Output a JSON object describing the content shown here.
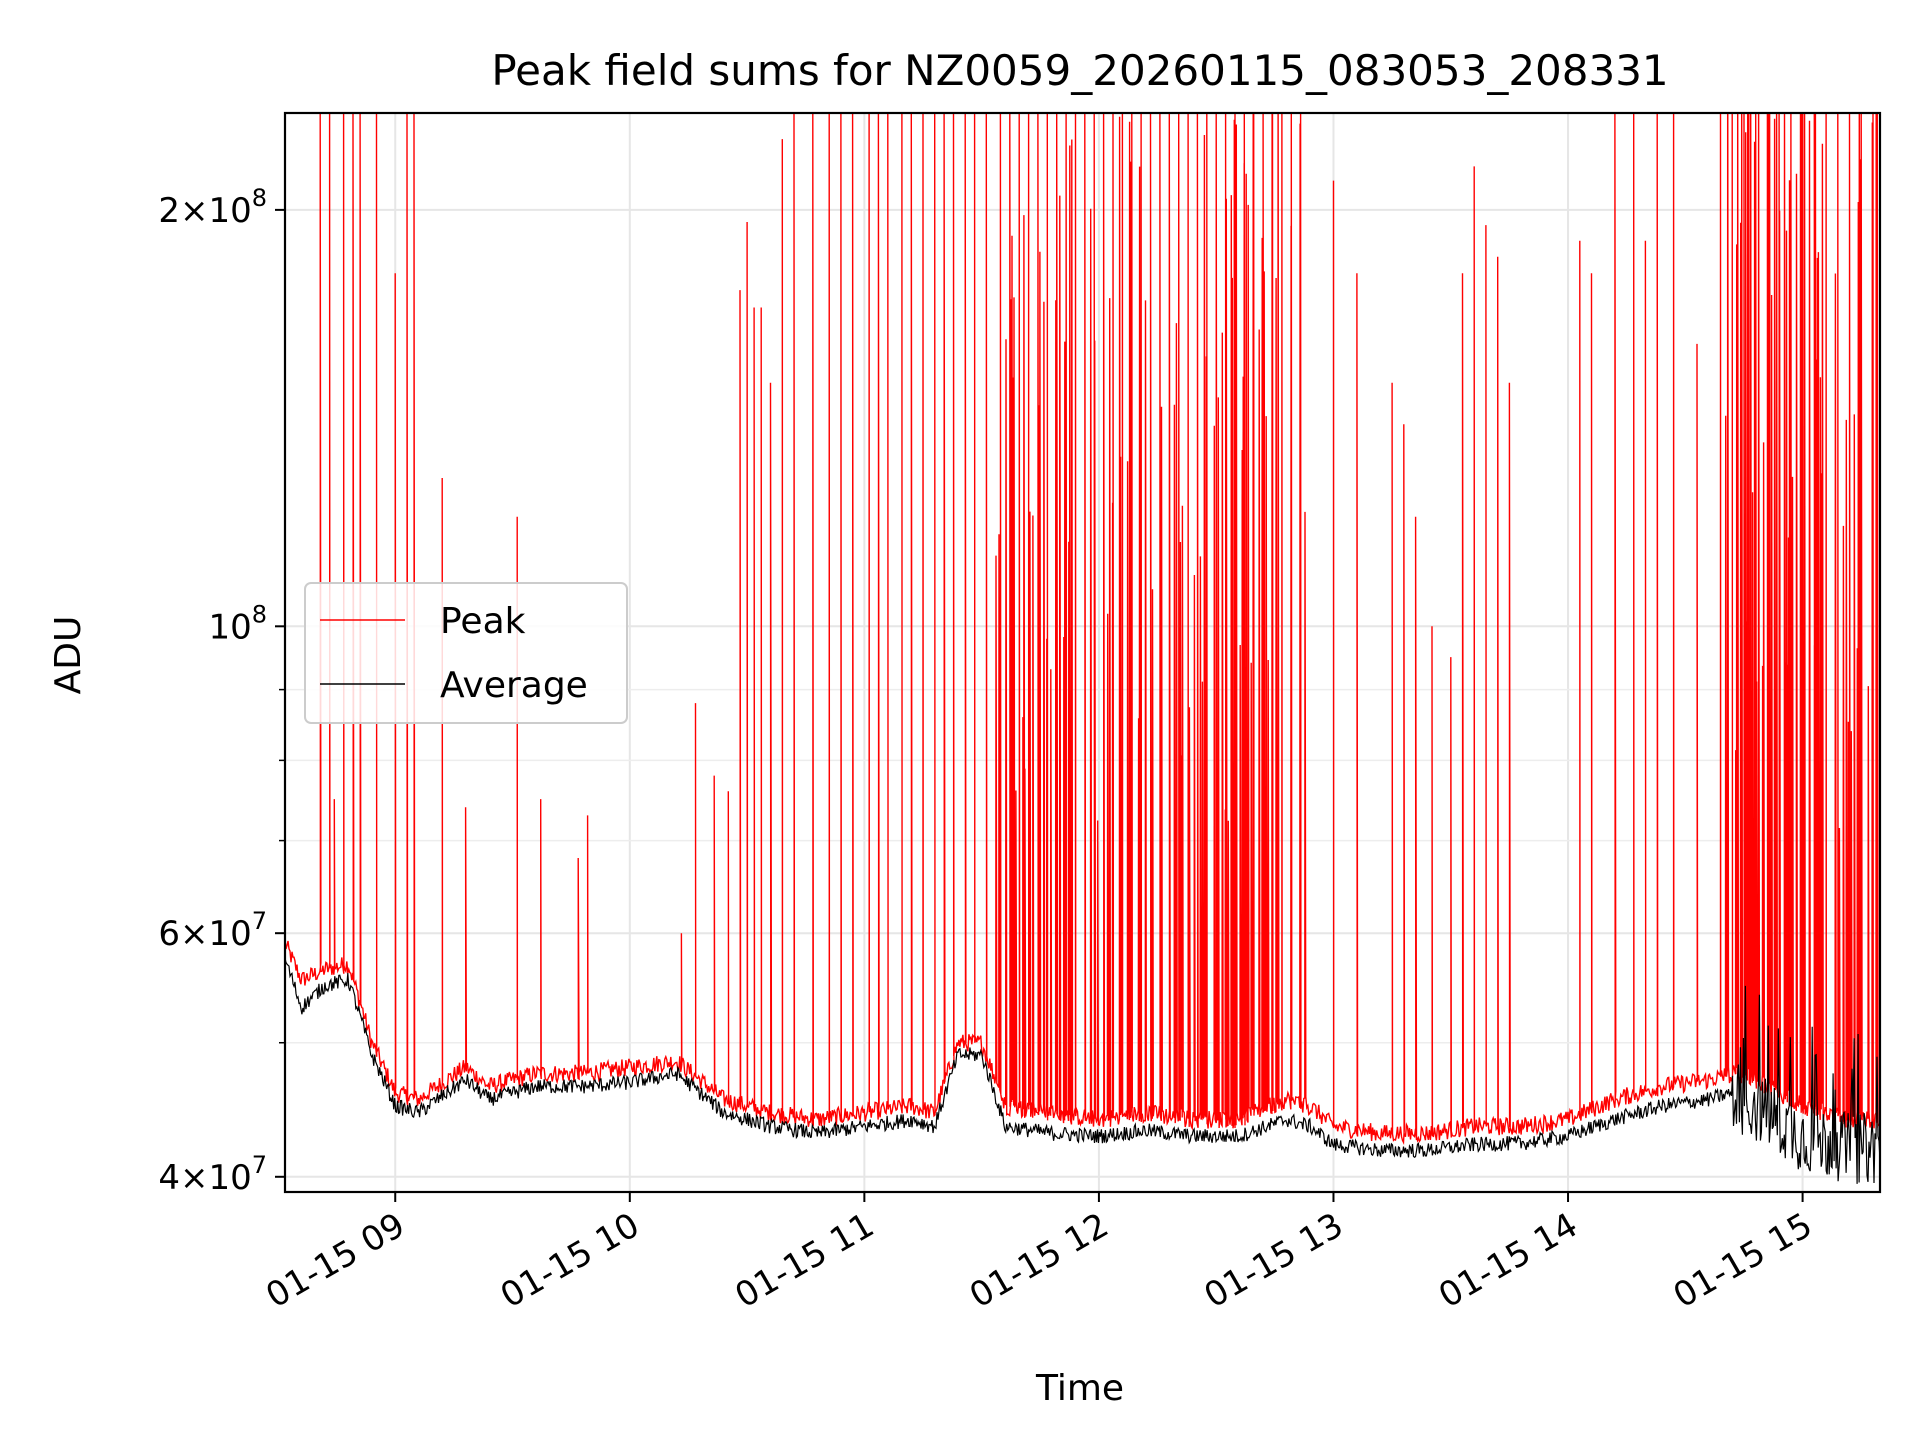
{
  "chart_data": {
    "type": "line",
    "title": "Peak field sums for NZ0059_20260115_083053_208331",
    "xlabel": "Time",
    "ylabel": "ADU",
    "yscale": "log",
    "xlim": [
      8.53,
      15.33
    ],
    "ylim": [
      39000000,
      235000000
    ],
    "grid": true,
    "legend_position": "center-left",
    "x_ticks": [
      {
        "value": 9,
        "label": "01-15 09"
      },
      {
        "value": 10,
        "label": "01-15 10"
      },
      {
        "value": 11,
        "label": "01-15 11"
      },
      {
        "value": 12,
        "label": "01-15 12"
      },
      {
        "value": 13,
        "label": "01-15 13"
      },
      {
        "value": 14,
        "label": "01-15 14"
      },
      {
        "value": 15,
        "label": "01-15 15"
      }
    ],
    "y_ticks": [
      {
        "value": 40000000,
        "mant": "4",
        "exp": "7"
      },
      {
        "value": 60000000,
        "mant": "6",
        "exp": "7"
      },
      {
        "value": 100000000,
        "mant": "",
        "exp": "8"
      },
      {
        "value": 200000000,
        "mant": "2",
        "exp": "8"
      }
    ],
    "y_minor": [
      50000000,
      70000000,
      80000000,
      90000000
    ],
    "series": [
      {
        "name": "Peak",
        "color": "#ff0000",
        "baseline": [
          [
            8.53,
            59000000
          ],
          [
            8.6,
            55500000
          ],
          [
            8.7,
            56500000
          ],
          [
            8.8,
            57000000
          ],
          [
            8.9,
            50000000
          ],
          [
            9.0,
            46000000
          ],
          [
            9.1,
            45500000
          ],
          [
            9.3,
            48000000
          ],
          [
            9.4,
            46500000
          ],
          [
            9.6,
            47500000
          ],
          [
            9.8,
            47500000
          ],
          [
            10.0,
            48000000
          ],
          [
            10.2,
            48500000
          ],
          [
            10.3,
            47000000
          ],
          [
            10.4,
            45500000
          ],
          [
            10.6,
            44500000
          ],
          [
            10.8,
            44000000
          ],
          [
            11.0,
            44500000
          ],
          [
            11.2,
            45000000
          ],
          [
            11.3,
            44500000
          ],
          [
            11.4,
            50000000
          ],
          [
            11.5,
            50000000
          ],
          [
            11.6,
            45000000
          ],
          [
            11.8,
            44500000
          ],
          [
            12.0,
            44000000
          ],
          [
            12.2,
            44500000
          ],
          [
            12.4,
            44000000
          ],
          [
            12.6,
            44000000
          ],
          [
            12.8,
            45500000
          ],
          [
            12.9,
            45000000
          ],
          [
            13.0,
            43500000
          ],
          [
            13.2,
            43000000
          ],
          [
            13.4,
            43000000
          ],
          [
            13.6,
            43500000
          ],
          [
            13.8,
            43500000
          ],
          [
            14.0,
            44000000
          ],
          [
            14.2,
            45500000
          ],
          [
            14.4,
            46500000
          ],
          [
            14.6,
            47000000
          ],
          [
            14.7,
            47500000
          ],
          [
            14.8,
            47000000
          ],
          [
            15.0,
            45000000
          ],
          [
            15.2,
            44000000
          ],
          [
            15.33,
            44000000
          ]
        ],
        "spikes": [
          [
            8.68,
            235000000
          ],
          [
            8.72,
            235000000
          ],
          [
            8.74,
            75000000
          ],
          [
            8.78,
            235000000
          ],
          [
            8.82,
            235000000
          ],
          [
            8.85,
            235000000
          ],
          [
            8.92,
            235000000
          ],
          [
            9.0,
            180000000
          ],
          [
            9.05,
            235000000
          ],
          [
            9.08,
            235000000
          ],
          [
            9.2,
            128000000
          ],
          [
            9.3,
            74000000
          ],
          [
            9.52,
            120000000
          ],
          [
            9.62,
            75000000
          ],
          [
            9.78,
            68000000
          ],
          [
            9.82,
            73000000
          ],
          [
            10.22,
            60000000
          ],
          [
            10.28,
            88000000
          ],
          [
            10.36,
            78000000
          ],
          [
            10.42,
            76000000
          ],
          [
            10.47,
            175000000
          ],
          [
            10.5,
            196000000
          ],
          [
            10.53,
            170000000
          ],
          [
            10.56,
            170000000
          ],
          [
            10.6,
            150000000
          ],
          [
            10.65,
            225000000
          ],
          [
            10.7,
            235000000
          ],
          [
            10.78,
            235000000
          ],
          [
            10.85,
            235000000
          ],
          [
            10.9,
            235000000
          ],
          [
            10.95,
            235000000
          ],
          [
            11.02,
            235000000
          ],
          [
            11.06,
            235000000
          ],
          [
            11.1,
            235000000
          ],
          [
            11.16,
            235000000
          ],
          [
            11.2,
            235000000
          ],
          [
            11.25,
            235000000
          ],
          [
            11.3,
            235000000
          ],
          [
            11.34,
            235000000
          ],
          [
            11.38,
            235000000
          ],
          [
            11.43,
            235000000
          ],
          [
            11.47,
            235000000
          ],
          [
            11.52,
            235000000
          ],
          [
            11.58,
            235000000
          ],
          [
            11.62,
            235000000
          ],
          [
            11.66,
            235000000
          ],
          [
            11.7,
            235000000
          ],
          [
            11.74,
            235000000
          ],
          [
            11.78,
            235000000
          ],
          [
            11.82,
            235000000
          ],
          [
            11.86,
            235000000
          ],
          [
            11.9,
            235000000
          ],
          [
            11.94,
            235000000
          ],
          [
            11.98,
            235000000
          ],
          [
            12.02,
            235000000
          ],
          [
            12.06,
            235000000
          ],
          [
            12.1,
            235000000
          ],
          [
            12.14,
            235000000
          ],
          [
            12.18,
            235000000
          ],
          [
            12.22,
            235000000
          ],
          [
            12.26,
            235000000
          ],
          [
            12.3,
            235000000
          ],
          [
            12.34,
            235000000
          ],
          [
            12.38,
            235000000
          ],
          [
            12.42,
            235000000
          ],
          [
            12.46,
            235000000
          ],
          [
            12.5,
            235000000
          ],
          [
            12.54,
            235000000
          ],
          [
            12.58,
            235000000
          ],
          [
            12.62,
            235000000
          ],
          [
            12.66,
            235000000
          ],
          [
            12.7,
            235000000
          ],
          [
            12.74,
            235000000
          ],
          [
            12.78,
            235000000
          ],
          [
            12.82,
            235000000
          ],
          [
            12.86,
            235000000
          ],
          [
            13.0,
            210000000
          ],
          [
            13.1,
            180000000
          ],
          [
            13.25,
            150000000
          ],
          [
            13.3,
            140000000
          ],
          [
            13.35,
            120000000
          ],
          [
            13.42,
            100000000
          ],
          [
            13.5,
            95000000
          ],
          [
            13.55,
            180000000
          ],
          [
            13.6,
            215000000
          ],
          [
            13.65,
            195000000
          ],
          [
            13.7,
            185000000
          ],
          [
            13.75,
            150000000
          ],
          [
            14.05,
            190000000
          ],
          [
            14.1,
            180000000
          ],
          [
            14.2,
            235000000
          ],
          [
            14.28,
            235000000
          ],
          [
            14.33,
            190000000
          ],
          [
            14.38,
            235000000
          ],
          [
            14.45,
            235000000
          ],
          [
            14.55,
            160000000
          ],
          [
            14.65,
            235000000
          ],
          [
            14.7,
            235000000
          ],
          [
            14.75,
            235000000
          ],
          [
            14.8,
            235000000
          ],
          [
            14.85,
            235000000
          ],
          [
            14.9,
            235000000
          ],
          [
            14.95,
            235000000
          ],
          [
            15.0,
            235000000
          ],
          [
            15.05,
            235000000
          ],
          [
            15.1,
            235000000
          ],
          [
            15.15,
            235000000
          ],
          [
            15.2,
            235000000
          ],
          [
            15.25,
            235000000
          ],
          [
            15.3,
            235000000
          ]
        ]
      },
      {
        "name": "Average",
        "color": "#000000",
        "baseline": [
          [
            8.53,
            57500000
          ],
          [
            8.6,
            53000000
          ],
          [
            8.7,
            55000000
          ],
          [
            8.8,
            55500000
          ],
          [
            8.9,
            49000000
          ],
          [
            9.0,
            45000000
          ],
          [
            9.1,
            44500000
          ],
          [
            9.3,
            47000000
          ],
          [
            9.4,
            45500000
          ],
          [
            9.6,
            46500000
          ],
          [
            9.8,
            46500000
          ],
          [
            10.0,
            46800000
          ],
          [
            10.2,
            47500000
          ],
          [
            10.3,
            46000000
          ],
          [
            10.4,
            44500000
          ],
          [
            10.6,
            43500000
          ],
          [
            10.8,
            43000000
          ],
          [
            11.0,
            43500000
          ],
          [
            11.2,
            44000000
          ],
          [
            11.3,
            43500000
          ],
          [
            11.4,
            49000000
          ],
          [
            11.5,
            49000000
          ],
          [
            11.6,
            43500000
          ],
          [
            11.8,
            43000000
          ],
          [
            12.0,
            42800000
          ],
          [
            12.2,
            43200000
          ],
          [
            12.4,
            42800000
          ],
          [
            12.6,
            42800000
          ],
          [
            12.8,
            44000000
          ],
          [
            12.9,
            43500000
          ],
          [
            13.0,
            42200000
          ],
          [
            13.2,
            41800000
          ],
          [
            13.4,
            41800000
          ],
          [
            13.6,
            42200000
          ],
          [
            13.8,
            42300000
          ],
          [
            14.0,
            42800000
          ],
          [
            14.2,
            44000000
          ],
          [
            14.4,
            45000000
          ],
          [
            14.6,
            45500000
          ],
          [
            14.7,
            46000000
          ],
          [
            14.8,
            45000000
          ],
          [
            15.0,
            42800000
          ],
          [
            15.2,
            42000000
          ],
          [
            15.33,
            42000000
          ]
        ]
      }
    ]
  }
}
